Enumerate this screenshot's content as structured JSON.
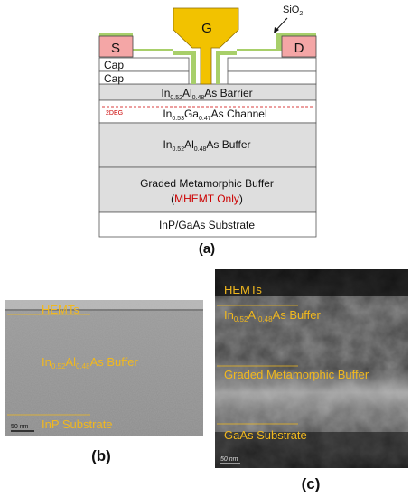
{
  "panel_a": {
    "gate": "G",
    "source": "S",
    "drain": "D",
    "oxide": "SiO",
    "oxide_sub": "2",
    "cap_upper": "Cap",
    "cap_lower": "Cap",
    "barrier": {
      "pre": "In",
      "s1": "0.52",
      "mid": "Al",
      "s2": "0.48",
      "post": "As Barrier"
    },
    "twodeg": "2DEG",
    "channel": {
      "pre": "In",
      "s1": "0.53",
      "mid": "Ga",
      "s2": "0.47",
      "post": "As Channel"
    },
    "buffer": {
      "pre": "In",
      "s1": "0.52",
      "mid": "Al",
      "s2": "0.48",
      "post": "As Buffer"
    },
    "graded": "Graded Metamorphic Buffer",
    "mhemt_open": "(",
    "mhemt": "MHEMT Only",
    "mhemt_close": ")",
    "substrate": "InP/GaAs Substrate",
    "label": "(a)"
  },
  "panel_b": {
    "hemts": "HEMTs",
    "buffer": {
      "pre": "In",
      "s1": "0.52",
      "mid": "Al",
      "s2": "0.48",
      "post": "As Buffer"
    },
    "substrate": "InP Substrate",
    "scale": "50 nm",
    "label": "(b)"
  },
  "panel_c": {
    "hemts": "HEMTs",
    "buffer": {
      "pre": "In",
      "s1": "0.52",
      "mid": "Al",
      "s2": "0.48",
      "post": "As Buffer"
    },
    "graded": "Graded Metamorphic Buffer",
    "substrate": "GaAs Substrate",
    "scale": "50 nm",
    "label": "(c)"
  },
  "colors": {
    "gate": "#f2c200",
    "contact": "#f4a6a6",
    "oxide": "#a8cf6a",
    "layer_gray": "#dedede",
    "mhemt_red": "#cc0000",
    "tem_label": "#f1b81e"
  }
}
